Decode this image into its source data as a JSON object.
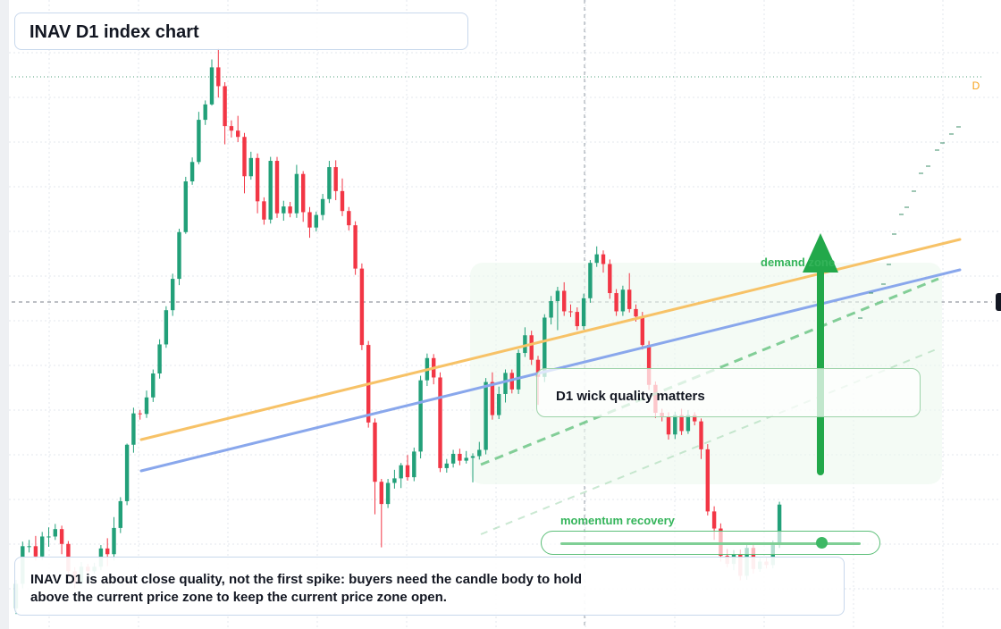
{
  "title": "INAV D1 index chart",
  "callout": "D1 wick quality matters",
  "momentum": {
    "label": "momentum recovery",
    "level": 0.87
  },
  "demand_label": "demand zone",
  "note": "INAV D1 is about close quality, not the first spike: buyers need the candle body to hold above the current price zone to keep the current price zone open.",
  "badge": "D",
  "colors": {
    "up": "#22a079",
    "down": "#f23645",
    "orange_line": "#f7c267",
    "blue_line": "#89a7ec",
    "green": "#22a84a",
    "grid": "#e3e7ee"
  },
  "chart_data": {
    "type": "candlestick",
    "ylim": [
      0,
      100
    ],
    "x_count": 118,
    "candles": [
      [
        3.0,
        7.3,
        2.0,
        8.0
      ],
      [
        7.3,
        13.9,
        6.5,
        14.7
      ],
      [
        13.9,
        13.9,
        12.8,
        15.0
      ],
      [
        13.9,
        12.1,
        11.4,
        15.7
      ],
      [
        12.1,
        15.6,
        11.5,
        16.4
      ],
      [
        15.6,
        15.6,
        13.8,
        17.2
      ],
      [
        15.6,
        16.9,
        15.0,
        17.8
      ],
      [
        16.9,
        14.3,
        12.5,
        17.5
      ],
      [
        14.3,
        9.5,
        8.3,
        14.8
      ],
      [
        9.5,
        7.5,
        6.5,
        10.2
      ],
      [
        7.5,
        10.3,
        7.0,
        11.1
      ],
      [
        10.3,
        9.5,
        8.8,
        10.8
      ],
      [
        9.5,
        10.3,
        9.1,
        11.0
      ],
      [
        10.3,
        13.5,
        9.7,
        14.1
      ],
      [
        13.5,
        12.5,
        10.4,
        15.3
      ],
      [
        12.5,
        17.1,
        11.4,
        19.0
      ],
      [
        17.1,
        21.8,
        16.2,
        22.5
      ],
      [
        21.8,
        31.7,
        21.1,
        31.9
      ],
      [
        31.7,
        37.2,
        30.3,
        38.2
      ],
      [
        37.2,
        37.1,
        36.1,
        37.8
      ],
      [
        37.1,
        40.0,
        36.4,
        41.2
      ],
      [
        40.0,
        44.2,
        39.2,
        44.9
      ],
      [
        44.2,
        49.3,
        43.3,
        50.2
      ],
      [
        49.3,
        55.3,
        48.7,
        56.0
      ],
      [
        55.3,
        60.8,
        54.3,
        61.7
      ],
      [
        60.8,
        69.0,
        59.7,
        69.6
      ],
      [
        69.0,
        77.9,
        68.7,
        78.7
      ],
      [
        77.9,
        81.3,
        77.3,
        82.1
      ],
      [
        81.3,
        88.7,
        80.9,
        90.1
      ],
      [
        88.7,
        91.4,
        87.8,
        92.1
      ],
      [
        91.4,
        97.9,
        91.2,
        99.3
      ],
      [
        97.9,
        94.6,
        92.6,
        101.2
      ],
      [
        94.6,
        87.6,
        84.4,
        95.3
      ],
      [
        87.6,
        86.8,
        85.6,
        88.6
      ],
      [
        86.8,
        85.7,
        84.8,
        89.4
      ],
      [
        85.7,
        78.8,
        75.8,
        86.4
      ],
      [
        78.8,
        82.0,
        78.2,
        83.1
      ],
      [
        82.0,
        74.4,
        72.3,
        82.8
      ],
      [
        74.4,
        71.2,
        70.3,
        75.1
      ],
      [
        71.2,
        81.5,
        70.5,
        82.2
      ],
      [
        81.5,
        72.3,
        71.5,
        82.2
      ],
      [
        72.3,
        73.5,
        71.0,
        74.5
      ],
      [
        73.5,
        72.3,
        71.6,
        74.3
      ],
      [
        72.3,
        79.2,
        71.5,
        80.8
      ],
      [
        79.2,
        72.5,
        70.8,
        79.7
      ],
      [
        72.5,
        69.8,
        68.0,
        73.4
      ],
      [
        69.8,
        72.0,
        69.1,
        72.6
      ],
      [
        72.0,
        74.8,
        71.1,
        75.7
      ],
      [
        74.8,
        80.4,
        74.1,
        81.5
      ],
      [
        80.4,
        76.2,
        74.6,
        81.6
      ],
      [
        76.2,
        72.7,
        71.8,
        78.4
      ],
      [
        72.7,
        70.2,
        69.3,
        73.4
      ],
      [
        70.2,
        62.6,
        61.5,
        70.9
      ],
      [
        62.6,
        49.2,
        48.3,
        63.5
      ],
      [
        49.2,
        35.6,
        34.7,
        49.9
      ],
      [
        35.6,
        25.2,
        19.5,
        36.3
      ],
      [
        25.2,
        21.3,
        13.7,
        25.7
      ],
      [
        21.3,
        25.0,
        20.6,
        25.7
      ],
      [
        25.0,
        25.8,
        24.0,
        27.3
      ],
      [
        25.8,
        28.1,
        24.1,
        28.5
      ],
      [
        28.1,
        26.0,
        25.4,
        29.9
      ],
      [
        26.0,
        30.5,
        25.3,
        31.2
      ],
      [
        30.5,
        43.0,
        29.3,
        43.8
      ],
      [
        43.0,
        46.9,
        42.0,
        47.7
      ],
      [
        46.9,
        43.5,
        42.3,
        47.6
      ],
      [
        43.5,
        27.6,
        26.9,
        44.4
      ],
      [
        27.6,
        28.4,
        26.8,
        29.2
      ],
      [
        28.4,
        30.1,
        27.7,
        30.8
      ],
      [
        30.1,
        28.9,
        28.1,
        31.0
      ],
      [
        28.9,
        29.4,
        28.4,
        30.6
      ],
      [
        29.4,
        29.7,
        25.1,
        30.2
      ],
      [
        29.7,
        30.8,
        29.1,
        32.2
      ],
      [
        30.8,
        42.7,
        30.0,
        43.4
      ],
      [
        42.7,
        36.9,
        36.1,
        44.4
      ],
      [
        36.9,
        40.6,
        36.2,
        41.9
      ],
      [
        40.6,
        44.3,
        39.1,
        44.9
      ],
      [
        44.3,
        41.4,
        40.7,
        44.9
      ],
      [
        41.4,
        47.8,
        40.6,
        48.4
      ],
      [
        47.8,
        50.9,
        47.1,
        52.3
      ],
      [
        50.9,
        46.6,
        45.7,
        51.7
      ],
      [
        46.6,
        43.6,
        38.7,
        47.3
      ],
      [
        43.6,
        54.0,
        42.7,
        54.6
      ],
      [
        54.0,
        56.9,
        52.8,
        57.8
      ],
      [
        56.9,
        58.7,
        51.8,
        59.4
      ],
      [
        58.7,
        55.1,
        54.3,
        60.2
      ],
      [
        55.1,
        55.0,
        54.1,
        56.3
      ],
      [
        55.0,
        52.5,
        51.8,
        55.8
      ],
      [
        52.5,
        57.4,
        51.9,
        58.2
      ],
      [
        57.4,
        63.6,
        56.6,
        64.1
      ],
      [
        63.6,
        65.1,
        62.9,
        66.5
      ],
      [
        65.1,
        63.4,
        61.9,
        65.8
      ],
      [
        63.4,
        58.3,
        57.3,
        64.2
      ],
      [
        58.3,
        55.1,
        54.3,
        59.0
      ],
      [
        55.1,
        58.9,
        54.3,
        59.6
      ],
      [
        58.9,
        55.5,
        54.9,
        61.8
      ],
      [
        55.5,
        54.2,
        53.3,
        56.3
      ],
      [
        54.2,
        49.2,
        48.4,
        55.0
      ],
      [
        49.2,
        42.2,
        41.3,
        49.9
      ],
      [
        42.2,
        37.3,
        36.4,
        42.8
      ],
      [
        37.3,
        36.6,
        35.8,
        38.0
      ],
      [
        36.6,
        33.5,
        32.6,
        37.4
      ],
      [
        33.5,
        36.9,
        32.7,
        37.5
      ],
      [
        36.9,
        34.1,
        33.4,
        38.0
      ],
      [
        34.1,
        36.9,
        33.6,
        37.8
      ],
      [
        36.9,
        35.8,
        35.1,
        37.4
      ],
      [
        35.8,
        30.9,
        29.2,
        36.3
      ],
      [
        30.9,
        20.0,
        19.3,
        31.8
      ],
      [
        20.0,
        17.0,
        15.0,
        20.9
      ],
      [
        17.0,
        12.2,
        11.2,
        17.9
      ],
      [
        12.2,
        10.8,
        10.2,
        13.4
      ],
      [
        10.8,
        12.4,
        9.7,
        13.2
      ],
      [
        12.4,
        8.7,
        7.9,
        13.3
      ],
      [
        8.7,
        13.6,
        8.0,
        14.3
      ],
      [
        13.6,
        9.9,
        9.1,
        14.3
      ],
      [
        9.9,
        11.2,
        9.4,
        11.8
      ],
      [
        11.2,
        10.6,
        10.0,
        11.9
      ],
      [
        10.6,
        14.1,
        10.0,
        14.9
      ],
      [
        14.1,
        21.2,
        13.6,
        21.7
      ]
    ]
  }
}
